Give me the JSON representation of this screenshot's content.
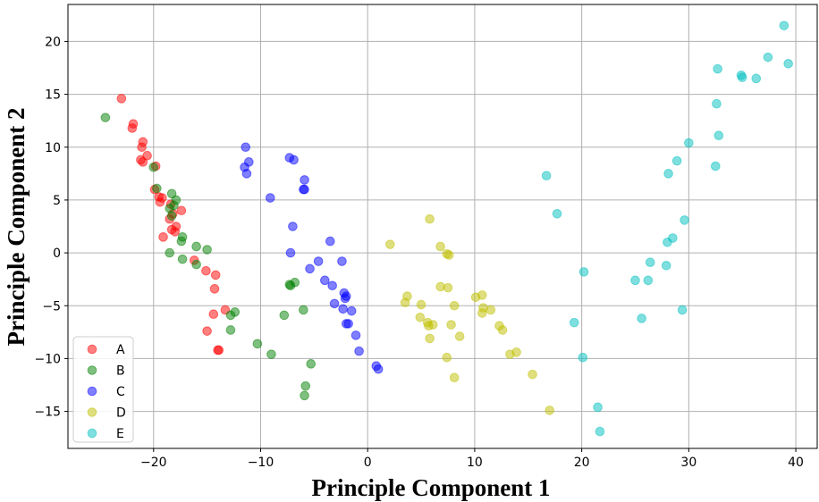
{
  "chart_data": {
    "type": "scatter",
    "title": "",
    "xlabel": "Principle Component 1",
    "ylabel": "Principle Component 2",
    "xlim": [
      -28,
      42
    ],
    "ylim": [
      -18.5,
      23.5
    ],
    "xticks": [
      -20,
      -10,
      0,
      10,
      20,
      30,
      40
    ],
    "yticks": [
      -15,
      -10,
      -5,
      0,
      5,
      10,
      15,
      20
    ],
    "grid": true,
    "legend_position": "lower-left",
    "series": [
      {
        "name": "A",
        "color": "#ff0000",
        "points": [
          [
            -23,
            14.6
          ],
          [
            -21.9,
            12.2
          ],
          [
            -22,
            11.8
          ],
          [
            -21,
            10.5
          ],
          [
            -21.1,
            10
          ],
          [
            -20.6,
            9.2
          ],
          [
            -21.2,
            8.8
          ],
          [
            -21,
            8.6
          ],
          [
            -19.8,
            8.2
          ],
          [
            -19.9,
            6
          ],
          [
            -19.5,
            5.3
          ],
          [
            -19.2,
            5.2
          ],
          [
            -19.4,
            4.8
          ],
          [
            -18.4,
            4.6
          ],
          [
            -18.2,
            3.7
          ],
          [
            -18.5,
            3.2
          ],
          [
            -17.9,
            2.5
          ],
          [
            -18.3,
            2.2
          ],
          [
            -17.4,
            4
          ],
          [
            -19.1,
            1.5
          ],
          [
            -18,
            2
          ],
          [
            -16.2,
            -0.7
          ],
          [
            -15.1,
            -1.7
          ],
          [
            -14.2,
            -2.1
          ],
          [
            -14.3,
            -3.4
          ],
          [
            -13.3,
            -5.4
          ],
          [
            -14.4,
            -5.8
          ],
          [
            -15,
            -7.4
          ],
          [
            -14,
            -9.2
          ],
          [
            -13.9,
            -9.2
          ]
        ]
      },
      {
        "name": "B",
        "color": "#008000",
        "points": [
          [
            -24.5,
            12.8
          ],
          [
            -20,
            8.1
          ],
          [
            -19.7,
            6.1
          ],
          [
            -18.3,
            5.6
          ],
          [
            -17.9,
            5
          ],
          [
            -18.1,
            4.5
          ],
          [
            -18.5,
            4.2
          ],
          [
            -18.3,
            3.5
          ],
          [
            -17.3,
            1.5
          ],
          [
            -17.4,
            1.1
          ],
          [
            -16,
            0.6
          ],
          [
            -15,
            0.3
          ],
          [
            -18.5,
            0
          ],
          [
            -17.3,
            -0.6
          ],
          [
            -16,
            -1.1
          ],
          [
            -12.8,
            -5.9
          ],
          [
            -12.4,
            -5.6
          ],
          [
            -12.8,
            -7.3
          ],
          [
            -10.3,
            -8.6
          ],
          [
            -9,
            -9.6
          ],
          [
            -7.8,
            -5.9
          ],
          [
            -7.3,
            -3
          ],
          [
            -7.2,
            -3.1
          ],
          [
            -6.8,
            -2.8
          ],
          [
            -6,
            -5.4
          ],
          [
            -5.8,
            -12.6
          ],
          [
            -5.9,
            -13.5
          ],
          [
            -5.3,
            -10.5
          ]
        ]
      },
      {
        "name": "C",
        "color": "#0000ff",
        "points": [
          [
            -11.4,
            10
          ],
          [
            -11.5,
            8.1
          ],
          [
            -11.1,
            8.6
          ],
          [
            -11.3,
            7.5
          ],
          [
            -9.1,
            5.2
          ],
          [
            -7.3,
            9
          ],
          [
            -6.9,
            8.8
          ],
          [
            -5.9,
            6.9
          ],
          [
            -6,
            6
          ],
          [
            -5.9,
            6
          ],
          [
            -7,
            2.5
          ],
          [
            -7.2,
            0
          ],
          [
            -3.5,
            1.1
          ],
          [
            -4.6,
            -0.8
          ],
          [
            -5.4,
            -1.5
          ],
          [
            -4,
            -2.6
          ],
          [
            -3.3,
            -3.1
          ],
          [
            -2.4,
            -0.8
          ],
          [
            -2.2,
            -3.8
          ],
          [
            -2.1,
            -4.3
          ],
          [
            -2,
            -4.1
          ],
          [
            -3.1,
            -4.8
          ],
          [
            -2.3,
            -5.3
          ],
          [
            -1.5,
            -5.5
          ],
          [
            -2,
            -6.7
          ],
          [
            -1.8,
            -6.7
          ],
          [
            -1.1,
            -7.8
          ],
          [
            -0.8,
            -9.3
          ],
          [
            0.8,
            -10.7
          ],
          [
            1,
            -11
          ]
        ]
      },
      {
        "name": "D",
        "color": "#bfbf00",
        "points": [
          [
            2.1,
            0.8
          ],
          [
            5.8,
            3.2
          ],
          [
            6.8,
            0.6
          ],
          [
            7.4,
            -0.1
          ],
          [
            7.6,
            -0.2
          ],
          [
            6.8,
            -3.2
          ],
          [
            7.5,
            -3.3
          ],
          [
            3.7,
            -4.1
          ],
          [
            3.5,
            -4.7
          ],
          [
            5,
            -4.9
          ],
          [
            8.1,
            -5
          ],
          [
            10.1,
            -4.2
          ],
          [
            10.7,
            -4
          ],
          [
            10.8,
            -5.2
          ],
          [
            10.7,
            -5.7
          ],
          [
            11.5,
            -5.4
          ],
          [
            4.9,
            -6.1
          ],
          [
            5.6,
            -6.6
          ],
          [
            5.7,
            -6.9
          ],
          [
            6.1,
            -6.8
          ],
          [
            7.8,
            -6.8
          ],
          [
            5.8,
            -8.1
          ],
          [
            8.6,
            -7.9
          ],
          [
            12.3,
            -6.9
          ],
          [
            12.6,
            -7.3
          ],
          [
            7.4,
            -9.9
          ],
          [
            13.3,
            -9.6
          ],
          [
            13.9,
            -9.4
          ],
          [
            8.1,
            -11.8
          ],
          [
            15.4,
            -11.5
          ],
          [
            17,
            -14.9
          ]
        ]
      },
      {
        "name": "E",
        "color": "#00bfbf",
        "points": [
          [
            16.7,
            7.3
          ],
          [
            17.7,
            3.7
          ],
          [
            20.2,
            -1.8
          ],
          [
            19.3,
            -6.6
          ],
          [
            20.1,
            -9.9
          ],
          [
            21.5,
            -14.6
          ],
          [
            21.7,
            -16.9
          ],
          [
            25,
            -2.6
          ],
          [
            25.6,
            -6.2
          ],
          [
            26.2,
            -2.6
          ],
          [
            26.4,
            -0.9
          ],
          [
            27.9,
            -1.2
          ],
          [
            28,
            1
          ],
          [
            28.5,
            1.4
          ],
          [
            29.6,
            3.1
          ],
          [
            29.4,
            -5.4
          ],
          [
            28.1,
            7.5
          ],
          [
            28.9,
            8.7
          ],
          [
            30,
            10.4
          ],
          [
            32.5,
            8.2
          ],
          [
            32.8,
            11.1
          ],
          [
            32.6,
            14.1
          ],
          [
            32.7,
            17.4
          ],
          [
            34.9,
            16.8
          ],
          [
            35,
            16.6
          ],
          [
            36.3,
            16.5
          ],
          [
            37.4,
            18.5
          ],
          [
            38.9,
            21.5
          ],
          [
            39.3,
            17.9
          ]
        ]
      }
    ]
  }
}
